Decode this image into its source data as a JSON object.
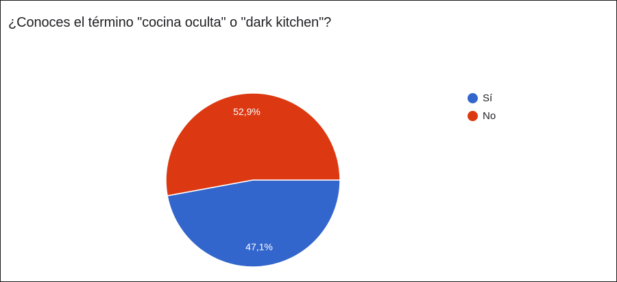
{
  "question": "¿Conoces el término \"cocina oculta\" o \"dark kitchen\"?",
  "chart_data": {
    "type": "pie",
    "categories": [
      "Sí",
      "No"
    ],
    "values": [
      47.1,
      52.9
    ],
    "labels": [
      "47,1%",
      "52,9%"
    ],
    "colors": [
      "#3366cc",
      "#dc3912"
    ],
    "title": "",
    "legend_position": "right"
  }
}
